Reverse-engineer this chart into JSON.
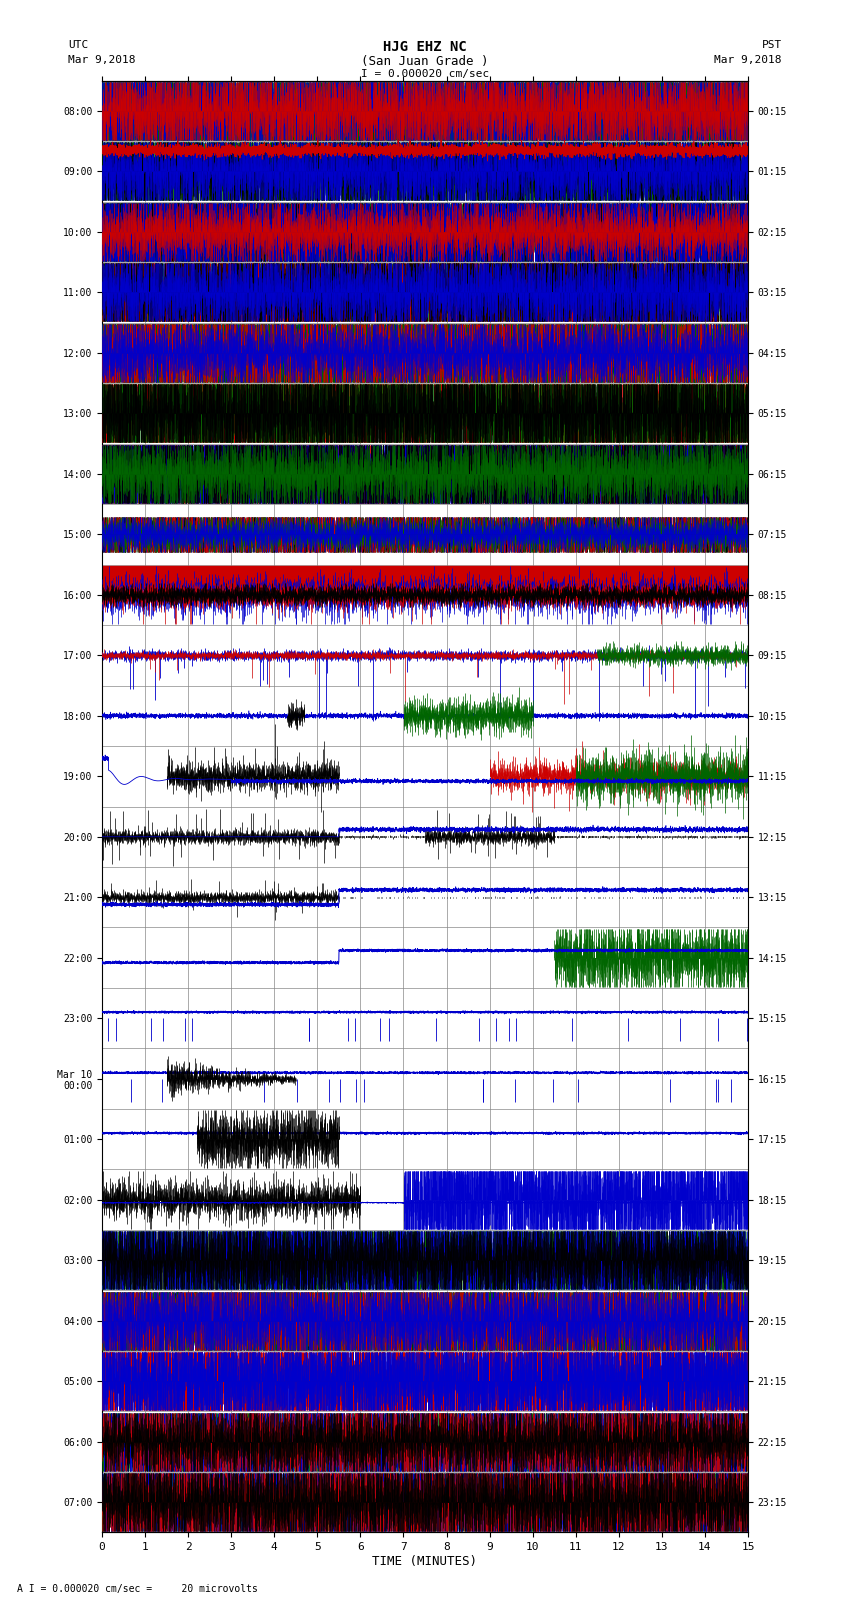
{
  "title_line1": "HJG EHZ NC",
  "title_line2": "(San Juan Grade )",
  "title_line3": "I = 0.000020 cm/sec",
  "left_label_top": "UTC",
  "left_label_date": "Mar 9,2018",
  "right_label_top": "PST",
  "right_label_date": "Mar 9,2018",
  "xlabel": "TIME (MINUTES)",
  "bottom_note": "A I = 0.000020 cm/sec =     20 microvolts",
  "utc_times": [
    "08:00",
    "09:00",
    "10:00",
    "11:00",
    "12:00",
    "13:00",
    "14:00",
    "15:00",
    "16:00",
    "17:00",
    "18:00",
    "19:00",
    "20:00",
    "21:00",
    "22:00",
    "23:00",
    "Mar 10\n00:00",
    "01:00",
    "02:00",
    "03:00",
    "04:00",
    "05:00",
    "06:00",
    "07:00"
  ],
  "pst_times": [
    "00:15",
    "01:15",
    "02:15",
    "03:15",
    "04:15",
    "05:15",
    "06:15",
    "07:15",
    "08:15",
    "09:15",
    "10:15",
    "11:15",
    "12:15",
    "13:15",
    "14:15",
    "15:15",
    "16:15",
    "17:15",
    "18:15",
    "19:15",
    "20:15",
    "21:15",
    "22:15",
    "23:15"
  ],
  "n_rows": 24,
  "x_min": 0,
  "x_max": 15,
  "bg_color": "#ffffff",
  "grid_color": "#888888",
  "seed": 42
}
